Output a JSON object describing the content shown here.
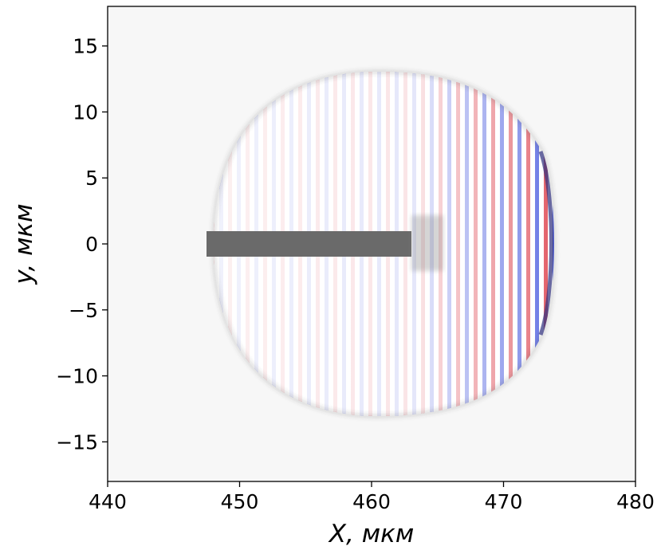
{
  "chart_data": {
    "type": "image",
    "x_label": "X, мкм",
    "y_label": "y, мкм",
    "xlim": [
      440,
      480
    ],
    "ylim": [
      -18,
      18
    ],
    "xticks": [
      440,
      450,
      460,
      470,
      480
    ],
    "yticks": [
      {
        "value": -15,
        "label": "−15"
      },
      {
        "value": -10,
        "label": "−10"
      },
      {
        "value": -5,
        "label": "−5"
      },
      0,
      5,
      10,
      15
    ]
  }
}
